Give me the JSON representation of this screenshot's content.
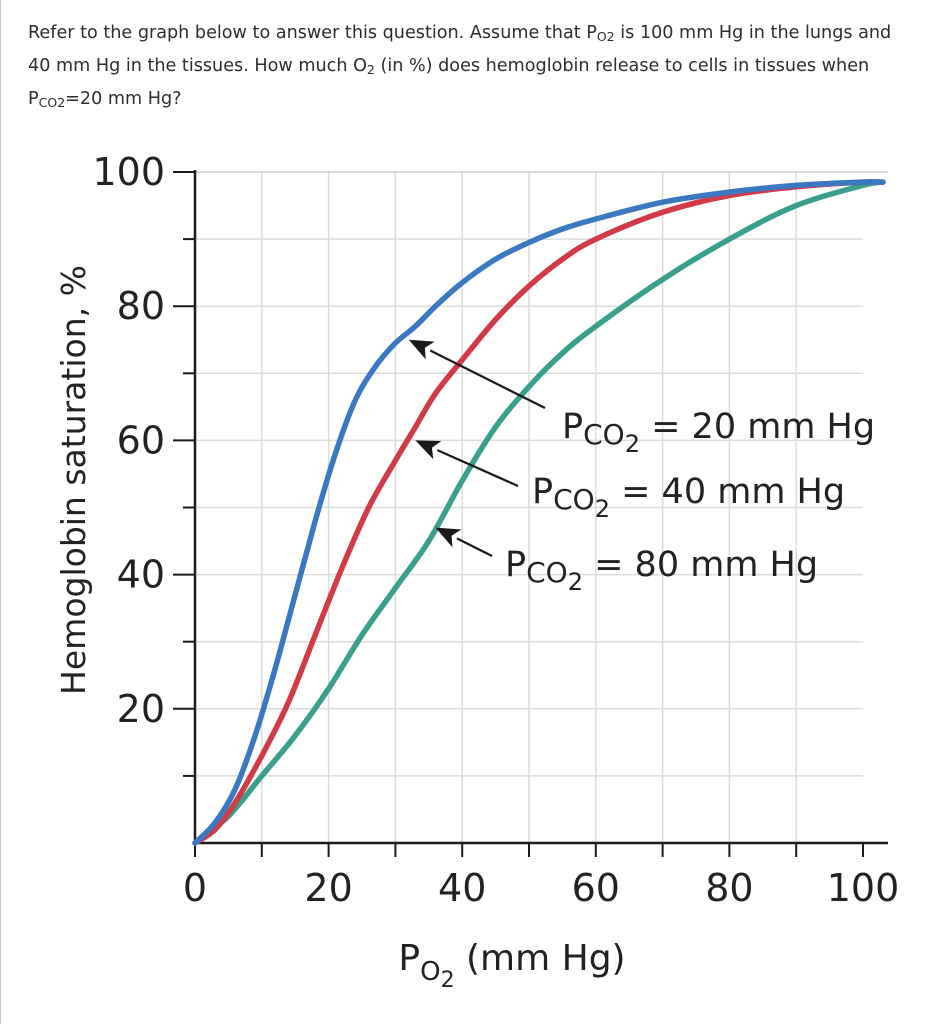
{
  "question": {
    "part1": "Refer to the graph below to answer this question. Assume that P",
    "sub1": "O2",
    "part2": " is 100 mm Hg in the lungs and 40 mm Hg in the tissues. How much O",
    "sub2": "2",
    "part3": " (in %) does hemoglobin release to cells in tissues when P",
    "sub3": "CO2",
    "part4": "=20 mm Hg?"
  },
  "chart_data": {
    "type": "line",
    "title": "",
    "xlabel": {
      "main": "P",
      "sub": "O",
      "subsub": "2",
      "rest": " (mm Hg)"
    },
    "ylabel": "Hemoglobin saturation, %",
    "xlim": [
      0,
      100
    ],
    "ylim": [
      0,
      100
    ],
    "x_ticks": [
      0,
      20,
      40,
      60,
      80,
      100
    ],
    "x_minor_ticks": [
      10,
      30,
      50,
      70,
      90
    ],
    "y_ticks": [
      20,
      40,
      60,
      80,
      100
    ],
    "y_minor_ticks": [
      10,
      30,
      50,
      70,
      90
    ],
    "grid": true,
    "colors": {
      "pco2_20": "#3a78c2",
      "pco2_40": "#d23a48",
      "pco2_80": "#3aa08c"
    },
    "series": [
      {
        "name": "PCO2 = 20 mm Hg",
        "label": {
          "main": "P",
          "sub": "CO",
          "subsub": "2",
          "rest": " = 20 mm Hg"
        },
        "color_key": "pco2_20",
        "arrow_to": [
          32,
          75
        ],
        "x": [
          0,
          3,
          6,
          9,
          12,
          15,
          18,
          21,
          24,
          27,
          30,
          33,
          36,
          40,
          45,
          50,
          55,
          60,
          70,
          80,
          90,
          100,
          103
        ],
        "y": [
          0,
          3,
          8,
          16,
          26,
          37,
          48,
          58,
          66,
          71,
          74.5,
          77,
          80,
          83.5,
          87,
          89.5,
          91.5,
          93,
          95.5,
          97,
          98,
          98.5,
          98.5
        ]
      },
      {
        "name": "PCO2 = 40 mm Hg",
        "label": {
          "main": "P",
          "sub": "CO",
          "subsub": "2",
          "rest": " = 40 mm Hg"
        },
        "color_key": "pco2_40",
        "arrow_to": [
          33,
          60
        ],
        "x": [
          0,
          3,
          6,
          10,
          14,
          18,
          22,
          26,
          30,
          33,
          36,
          40,
          45,
          50,
          55,
          60,
          70,
          80,
          90,
          100,
          103
        ],
        "y": [
          0,
          2,
          6,
          13,
          21,
          31,
          41,
          50,
          57,
          62,
          67,
          72,
          78,
          83,
          87,
          90,
          94,
          96.5,
          97.8,
          98.5,
          98.5
        ]
      },
      {
        "name": "PCO2 = 80 mm Hg",
        "label": {
          "main": "P",
          "sub": "CO",
          "subsub": "2",
          "rest": " = 80 mm Hg"
        },
        "color_key": "pco2_80",
        "arrow_to": [
          36,
          47
        ],
        "x": [
          0,
          5,
          10,
          15,
          20,
          25,
          30,
          35,
          40,
          45,
          50,
          55,
          60,
          70,
          80,
          90,
          100,
          103
        ],
        "y": [
          0,
          4,
          10,
          16,
          23,
          31,
          38,
          45,
          54,
          62,
          68,
          73,
          77,
          84,
          90,
          95,
          98,
          98.5
        ]
      }
    ]
  }
}
